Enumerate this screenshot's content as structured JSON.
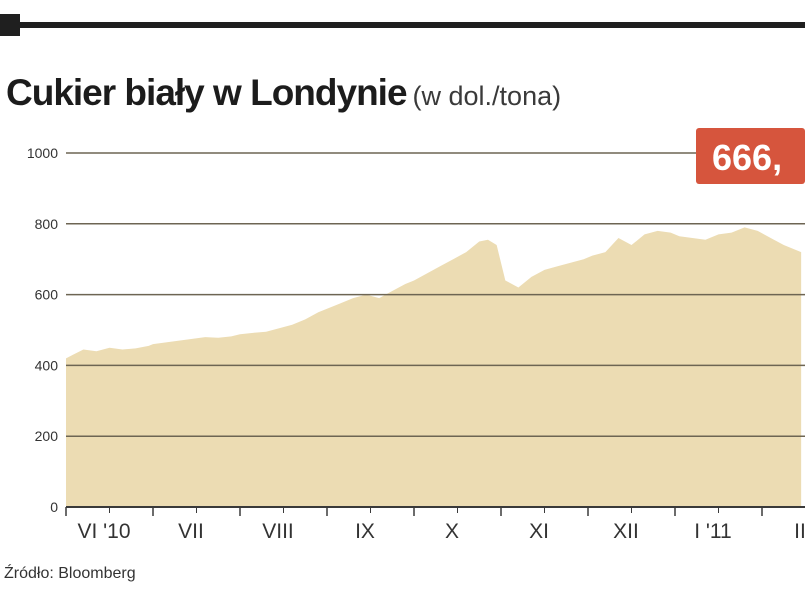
{
  "header": {
    "title": "Cukier biały w Londynie",
    "subtitle": "(w dol./tona)"
  },
  "callout": {
    "text": "666,",
    "color": "#d6553d"
  },
  "source": "Źródło: Bloomberg",
  "colors": {
    "area": "#ecdcb3",
    "grid": "#6d6553",
    "axis": "#3a3a3a",
    "tick_label": "#333333"
  },
  "chart_data": {
    "type": "area",
    "title": "Cukier biały w Londynie",
    "ylabel": "(w dol./tona)",
    "xlabel": "",
    "ylim": [
      0,
      1000
    ],
    "yticks": [
      0,
      200,
      400,
      600,
      800,
      1000
    ],
    "grid": true,
    "xticks": [
      "VI '10",
      "VII",
      "VIII",
      "IX",
      "X",
      "XI",
      "XII",
      "I '11",
      "II"
    ],
    "x": [
      0,
      0.08,
      0.2,
      0.35,
      0.5,
      0.65,
      0.8,
      0.95,
      1.0,
      1.15,
      1.3,
      1.45,
      1.6,
      1.75,
      1.9,
      2.0,
      2.15,
      2.3,
      2.45,
      2.6,
      2.75,
      2.9,
      3.0,
      3.15,
      3.3,
      3.45,
      3.6,
      3.75,
      3.9,
      4.0,
      4.15,
      4.3,
      4.45,
      4.6,
      4.75,
      4.85,
      4.95,
      5.05,
      5.2,
      5.35,
      5.5,
      5.65,
      5.8,
      5.95,
      6.05,
      6.2,
      6.35,
      6.5,
      6.65,
      6.8,
      6.95,
      7.05,
      7.2,
      7.35,
      7.5,
      7.65,
      7.8,
      7.95,
      8.1,
      8.25,
      8.45
    ],
    "values": [
      420,
      430,
      445,
      440,
      450,
      445,
      448,
      455,
      460,
      465,
      470,
      475,
      480,
      478,
      482,
      488,
      492,
      495,
      505,
      515,
      530,
      550,
      560,
      575,
      590,
      600,
      590,
      610,
      630,
      640,
      660,
      680,
      700,
      720,
      750,
      755,
      740,
      640,
      620,
      650,
      670,
      680,
      690,
      700,
      710,
      720,
      760,
      740,
      770,
      780,
      775,
      765,
      760,
      755,
      770,
      775,
      790,
      780,
      760,
      740,
      720
    ]
  }
}
